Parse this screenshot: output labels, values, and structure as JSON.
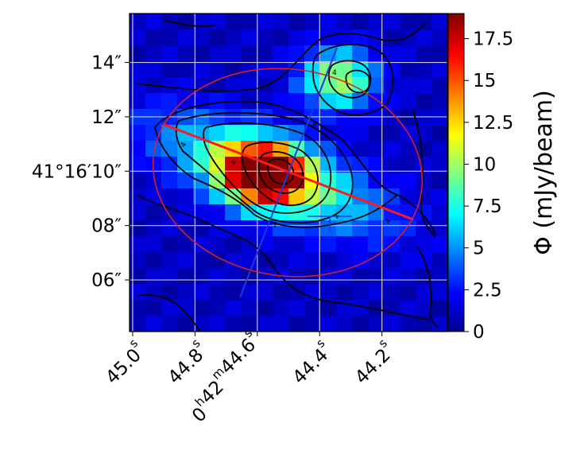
{
  "chart_data": {
    "type": "heatmap",
    "title": "",
    "xlabel": "",
    "ylabel": "",
    "x_ticks": [
      {
        "label": [
          "45.0",
          "s"
        ],
        "ra_s": 45.0
      },
      {
        "label": [
          "44.8",
          "s"
        ],
        "ra_s": 44.8
      },
      {
        "label": [
          "0",
          "h",
          "42",
          "m",
          "44.6",
          "s"
        ],
        "ra_s": 44.6
      },
      {
        "label": [
          "44.4",
          "s"
        ],
        "ra_s": 44.4
      },
      {
        "label": [
          "44.2",
          "s"
        ],
        "ra_s": 44.2
      }
    ],
    "y_ticks": [
      {
        "label": "14″",
        "dec_arcsec": 14
      },
      {
        "label": "12″",
        "dec_arcsec": 12
      },
      {
        "label": "41°16′10″",
        "dec_arcsec": 10
      },
      {
        "label": "08″",
        "dec_arcsec": 8
      },
      {
        "label": "06″",
        "dec_arcsec": 6
      }
    ],
    "xlim_ra_s": [
      45.01,
      43.99
    ],
    "ylim_dec_arcsec": [
      4.1,
      15.8
    ],
    "grid": true,
    "colorbar": {
      "label": "Φ (mJy/beam)",
      "range": [
        0,
        19
      ],
      "ticks": [
        "0",
        "2.5",
        "5",
        "7.5",
        "10",
        "12.5",
        "15",
        "17.5"
      ],
      "tick_values": [
        0,
        2.5,
        5,
        7.5,
        10,
        12.5,
        15,
        17.5
      ],
      "colormap": "jet"
    },
    "colors": {
      "contour": "#000000",
      "axis_line": "#ff1a1a",
      "ellipse": "#dd2222",
      "blue_line": "#1f3bd6",
      "grid": "#c8c8c8"
    },
    "contour_labels": [
      "4",
      "4",
      "4",
      "4",
      "4",
      "4",
      "2"
    ],
    "grid_nx": 20,
    "grid_ny": 20,
    "peaks": [
      {
        "name": "main-peak",
        "ra_s": 44.58,
        "dec_arcsec": 9.9,
        "value": 19
      },
      {
        "name": "secondary-peak",
        "ra_s": 44.34,
        "dec_arcsec": 13.4,
        "value": 9.5
      }
    ],
    "ridge": {
      "ra_s": 44.56,
      "dec_arcsec": 9.9,
      "value": 9.5,
      "extent": "elongated along the position angle of the red axis"
    }
  }
}
